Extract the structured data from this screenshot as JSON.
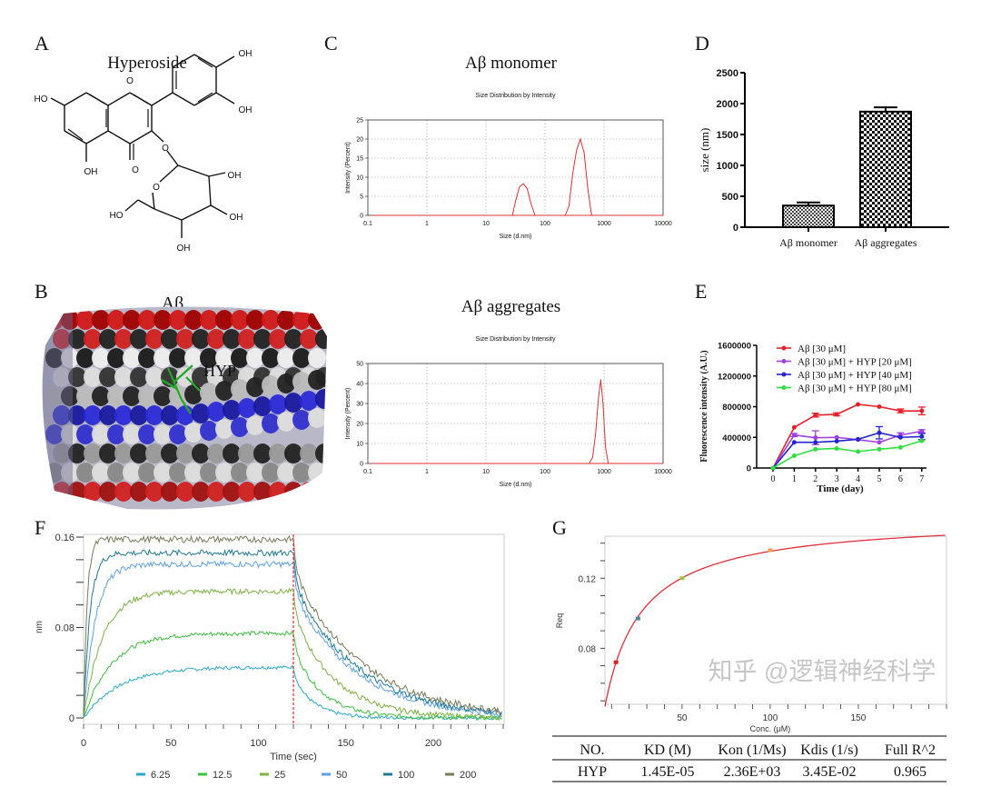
{
  "panel_labels": {
    "A": "A",
    "B": "B",
    "C": "C",
    "D": "D",
    "E": "E",
    "F": "F",
    "G": "G"
  },
  "molecule": {
    "name": "Hyperoside",
    "atoms": {
      "ho_a": "HO",
      "oh_a": "OH",
      "oh_b1": "OH",
      "oh_b2": "OH",
      "o_ring": "O",
      "o_keto": "O",
      "o_link": "O",
      "o_sugar": "O",
      "ho_sugar": "HO",
      "oh_s1": "OH",
      "oh_s2": "OH",
      "oh_s3": "OH"
    }
  },
  "structure": {
    "title": "Aβ",
    "ligand_label": "HYP",
    "ligand_color": "#22aa22"
  },
  "chart_data": [
    {
      "id": "C1",
      "type": "line",
      "heading": "Aβ monomer",
      "title": "Size Distribution by Intensity",
      "xlabel": "Size (d.nm)",
      "ylabel": "Intensity (Percent)",
      "xscale": "log",
      "xlim": [
        0.1,
        10000
      ],
      "ylim": [
        0,
        25
      ],
      "xticks": [
        "0.1",
        "1",
        "10",
        "100",
        "1000",
        "10000"
      ],
      "yticks": [
        "0",
        "5",
        "10",
        "15",
        "20",
        "25"
      ],
      "grid": true,
      "color": "#e03030",
      "series": [
        {
          "x": [
            28,
            32,
            37,
            43,
            50,
            58,
            68
          ],
          "y": [
            0,
            4,
            7.5,
            8.3,
            7,
            3,
            0
          ]
        },
        {
          "x": [
            220,
            255,
            295,
            342,
            396,
            459,
            531,
            615
          ],
          "y": [
            0,
            2.5,
            11,
            17,
            20,
            16.5,
            7,
            0
          ]
        }
      ]
    },
    {
      "id": "C2",
      "type": "line",
      "heading": "Aβ aggregates",
      "title": "Size Distribution by Intensity",
      "xlabel": "Size (d.nm)",
      "ylabel": "Intensity (Percent)",
      "xscale": "log",
      "xlim": [
        0.1,
        10000
      ],
      "ylim": [
        0,
        50
      ],
      "xticks": [
        "0.1",
        "1",
        "10",
        "100",
        "1000",
        "10000"
      ],
      "yticks": [
        "0",
        "10",
        "20",
        "30",
        "40",
        "50"
      ],
      "grid": true,
      "color": "#e03030",
      "series": [
        {
          "x": [
            560,
            640,
            720,
            800,
            880,
            960,
            1060,
            1180
          ],
          "y": [
            0,
            3,
            15,
            32,
            42,
            30,
            8,
            0
          ]
        }
      ]
    },
    {
      "id": "D",
      "type": "bar",
      "ylabel": "size (nm)",
      "ylim": [
        0,
        2500
      ],
      "yticks": [
        "0",
        "500",
        "1000",
        "1500",
        "2000",
        "2500"
      ],
      "categories": [
        "Aβ monomer",
        "Aβ aggregates"
      ],
      "values": [
        350,
        1870
      ],
      "errors": [
        50,
        70
      ]
    },
    {
      "id": "E",
      "type": "line",
      "xlabel": "Time (day)",
      "ylabel": "Fluorescence intensity (A.U.)",
      "ylim": [
        0,
        1600000
      ],
      "yticks": [
        "0",
        "400000",
        "800000",
        "1200000",
        "1600000"
      ],
      "x": [
        0,
        1,
        2,
        3,
        4,
        5,
        6,
        7
      ],
      "legend": "top-left",
      "series": [
        {
          "name": "Aβ [30 μM]",
          "color": "#e8202a",
          "values": [
            0,
            530000,
            690000,
            700000,
            830000,
            800000,
            745000,
            745000
          ],
          "errors": [
            0,
            10000,
            25000,
            20000,
            10000,
            10000,
            25000,
            50000
          ]
        },
        {
          "name": "Aβ [30 μM] + HYP [20 μM]",
          "color": "#a040e0",
          "values": [
            0,
            430000,
            395000,
            400000,
            370000,
            335000,
            430000,
            480000
          ],
          "errors": [
            0,
            20000,
            90000,
            15000,
            10000,
            10000,
            30000,
            20000
          ]
        },
        {
          "name": "Aβ [30 μM] + HYP [40 μM]",
          "color": "#2424d0",
          "values": [
            0,
            335000,
            335000,
            350000,
            375000,
            460000,
            400000,
            410000
          ],
          "errors": [
            0,
            10000,
            10000,
            10000,
            10000,
            80000,
            10000,
            40000
          ]
        },
        {
          "name": "Aβ [30 μM] + HYP [80 μM]",
          "color": "#30e040",
          "values": [
            0,
            160000,
            245000,
            255000,
            215000,
            245000,
            270000,
            355000
          ],
          "errors": [
            0,
            10000,
            15000,
            10000,
            10000,
            10000,
            10000,
            10000
          ]
        }
      ]
    },
    {
      "id": "F",
      "type": "line",
      "xlabel": "Time (sec)",
      "ylabel": "nm",
      "xlim": [
        0,
        240
      ],
      "ylim": [
        0,
        0.16
      ],
      "xticks": [
        "0",
        "50",
        "100",
        "150",
        "200"
      ],
      "yticks": [
        "0",
        "0.08",
        "0.16"
      ],
      "dissociation_start": 120,
      "legend": "bottom",
      "series": [
        {
          "name": "6.25",
          "conc": 6.25,
          "plateau": 0.045,
          "color": "#2aa9c9"
        },
        {
          "name": "12.5",
          "conc": 12.5,
          "plateau": 0.075,
          "color": "#3cbf3c"
        },
        {
          "name": "25",
          "conc": 25,
          "plateau": 0.112,
          "color": "#7cb342"
        },
        {
          "name": "50",
          "conc": 50,
          "plateau": 0.136,
          "color": "#5ea0e0"
        },
        {
          "name": "100",
          "conc": 100,
          "plateau": 0.146,
          "color": "#1f7a94"
        },
        {
          "name": "200",
          "conc": 200,
          "plateau": 0.158,
          "color": "#7a7a5a"
        }
      ]
    },
    {
      "id": "G",
      "type": "scatter",
      "xlabel": "Conc. (μM)",
      "ylabel": "Req",
      "xlim": [
        6.25,
        200
      ],
      "ylim": [
        0.048,
        0.144
      ],
      "xticks": [
        "50",
        "100",
        "150"
      ],
      "yticks": [
        "0.08",
        "0.12"
      ],
      "fit_color": "#e0303a",
      "points": {
        "x": [
          12.5,
          25,
          50,
          100
        ],
        "y": [
          0.072,
          0.097,
          0.12,
          0.136
        ],
        "colors": [
          "#e02020",
          "#5080a0",
          "#a0c040",
          "#f0a040"
        ]
      },
      "fit": {
        "KD_uM": 14.5,
        "Rmax": 0.155
      }
    }
  ],
  "table": {
    "headers": [
      "NO.",
      "KD (M)",
      "Kon (1/Ms)",
      "Kdis (1/s)",
      "Full R^2"
    ],
    "rows": [
      [
        "HYP",
        "1.45E-05",
        "2.36E+03",
        "3.45E-02",
        "0.965"
      ]
    ]
  },
  "watermark": "知乎 @逻辑神经科学"
}
